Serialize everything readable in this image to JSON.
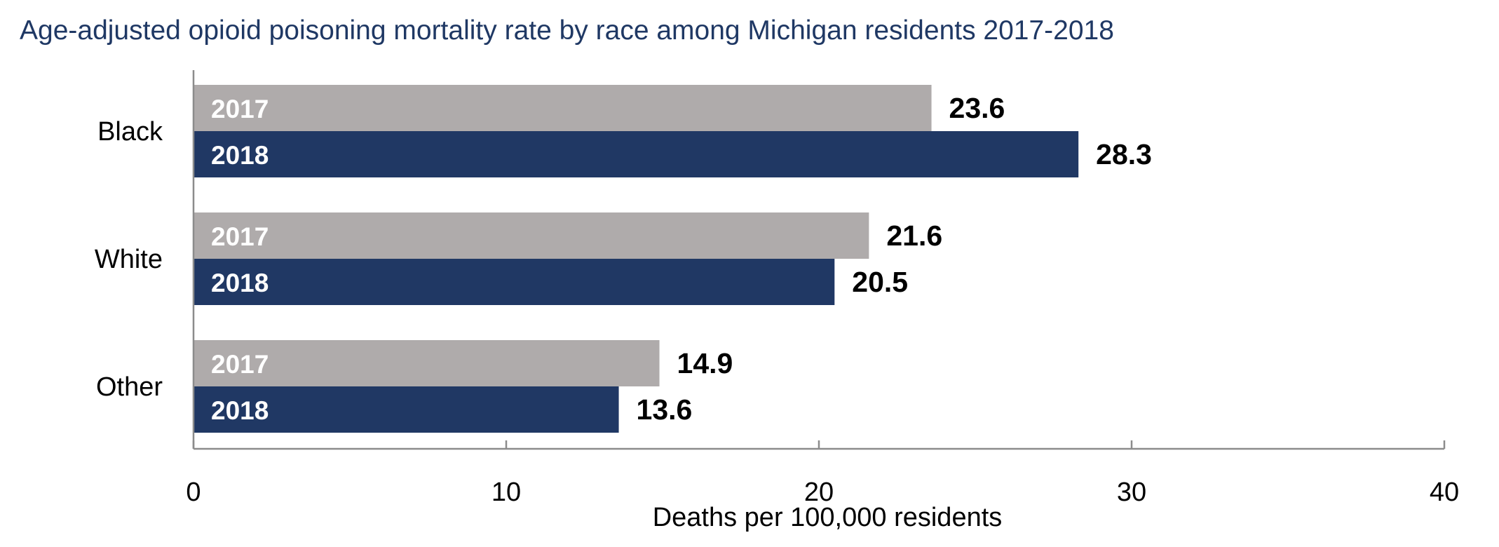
{
  "chart_data": {
    "type": "bar",
    "orientation": "horizontal",
    "title": "Age-adjusted opioid poisoning mortality rate by race among Michigan residents 2017-2018",
    "xlabel": "Deaths per 100,000 residents",
    "ylabel": "",
    "categories": [
      "Black",
      "White",
      "Other"
    ],
    "series": [
      {
        "name": "2017",
        "color": "#afabab",
        "values": [
          23.6,
          21.6,
          14.9
        ]
      },
      {
        "name": "2018",
        "color": "#203864",
        "values": [
          28.3,
          20.5,
          13.6
        ]
      }
    ],
    "xlim": [
      0,
      40
    ],
    "xticks": [
      0,
      10,
      20,
      30,
      40
    ],
    "grid": false,
    "legend": "none",
    "label_color": "#000000",
    "axis_color": "#8c8c8c"
  }
}
